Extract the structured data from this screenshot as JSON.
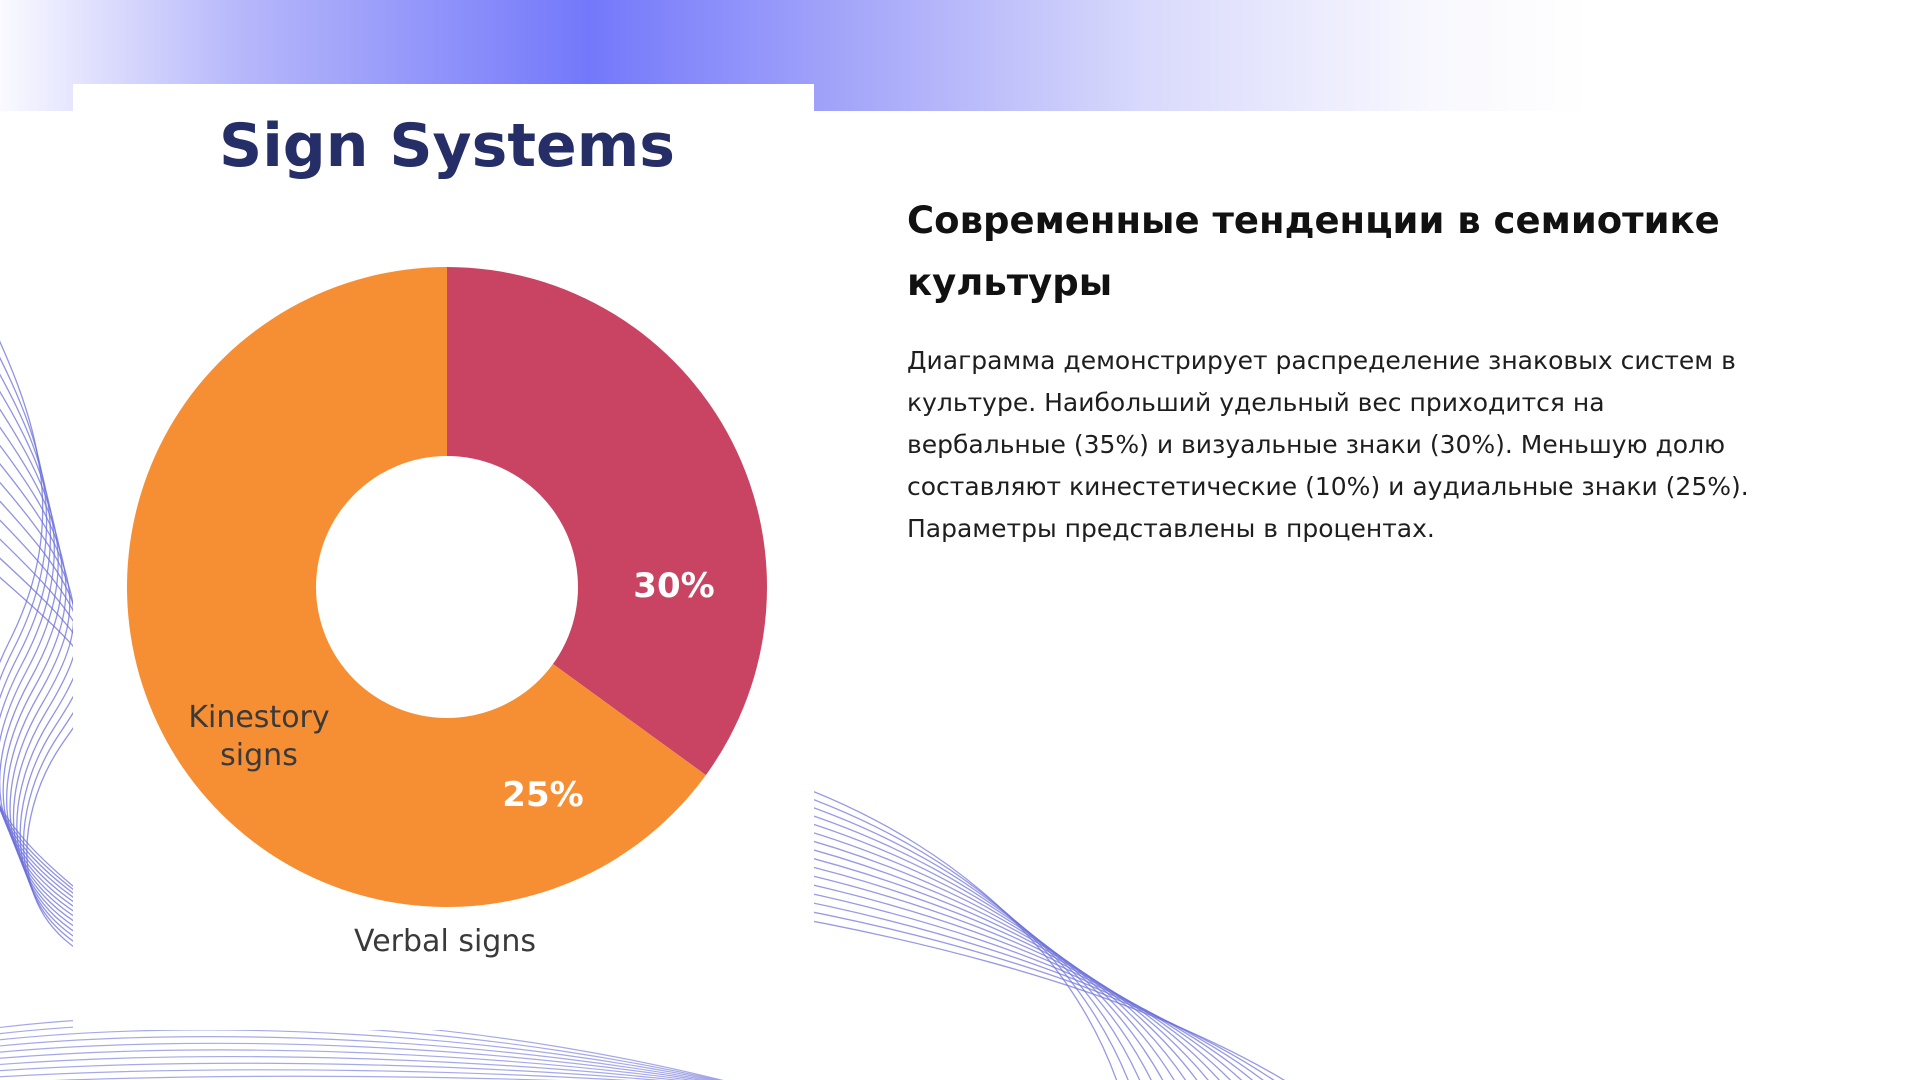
{
  "heading": "Современные тенденции в семиотике культуры",
  "body": "Диаграмма демонстрирует распределение знаковых систем в культуре. Наибольший удельный вес приходится на вербальные (35%) и визуальные знаки (30%). Меньшую долю составляют кинестетические (10%) и аудиальные знаки (25%). Параметры представлены в процентах.",
  "colors": {
    "accent": "#7b7df7",
    "line": "#6b6fd8",
    "title": "#252e67"
  },
  "chart_data": {
    "type": "pie",
    "variant": "donut",
    "title": "Sign Systems",
    "slices": [
      {
        "value": 35,
        "label": "",
        "color": "#c94462"
      },
      {
        "value": 65,
        "label": "",
        "color": "#f68f34"
      }
    ],
    "annotations": [
      {
        "text": "30%",
        "role": "percent"
      },
      {
        "text": "25%",
        "role": "percent"
      },
      {
        "text": "Kinestory",
        "role": "name"
      },
      {
        "text": "signs",
        "role": "name"
      },
      {
        "text": "Verbal signs",
        "role": "name"
      }
    ],
    "legend": "none"
  }
}
